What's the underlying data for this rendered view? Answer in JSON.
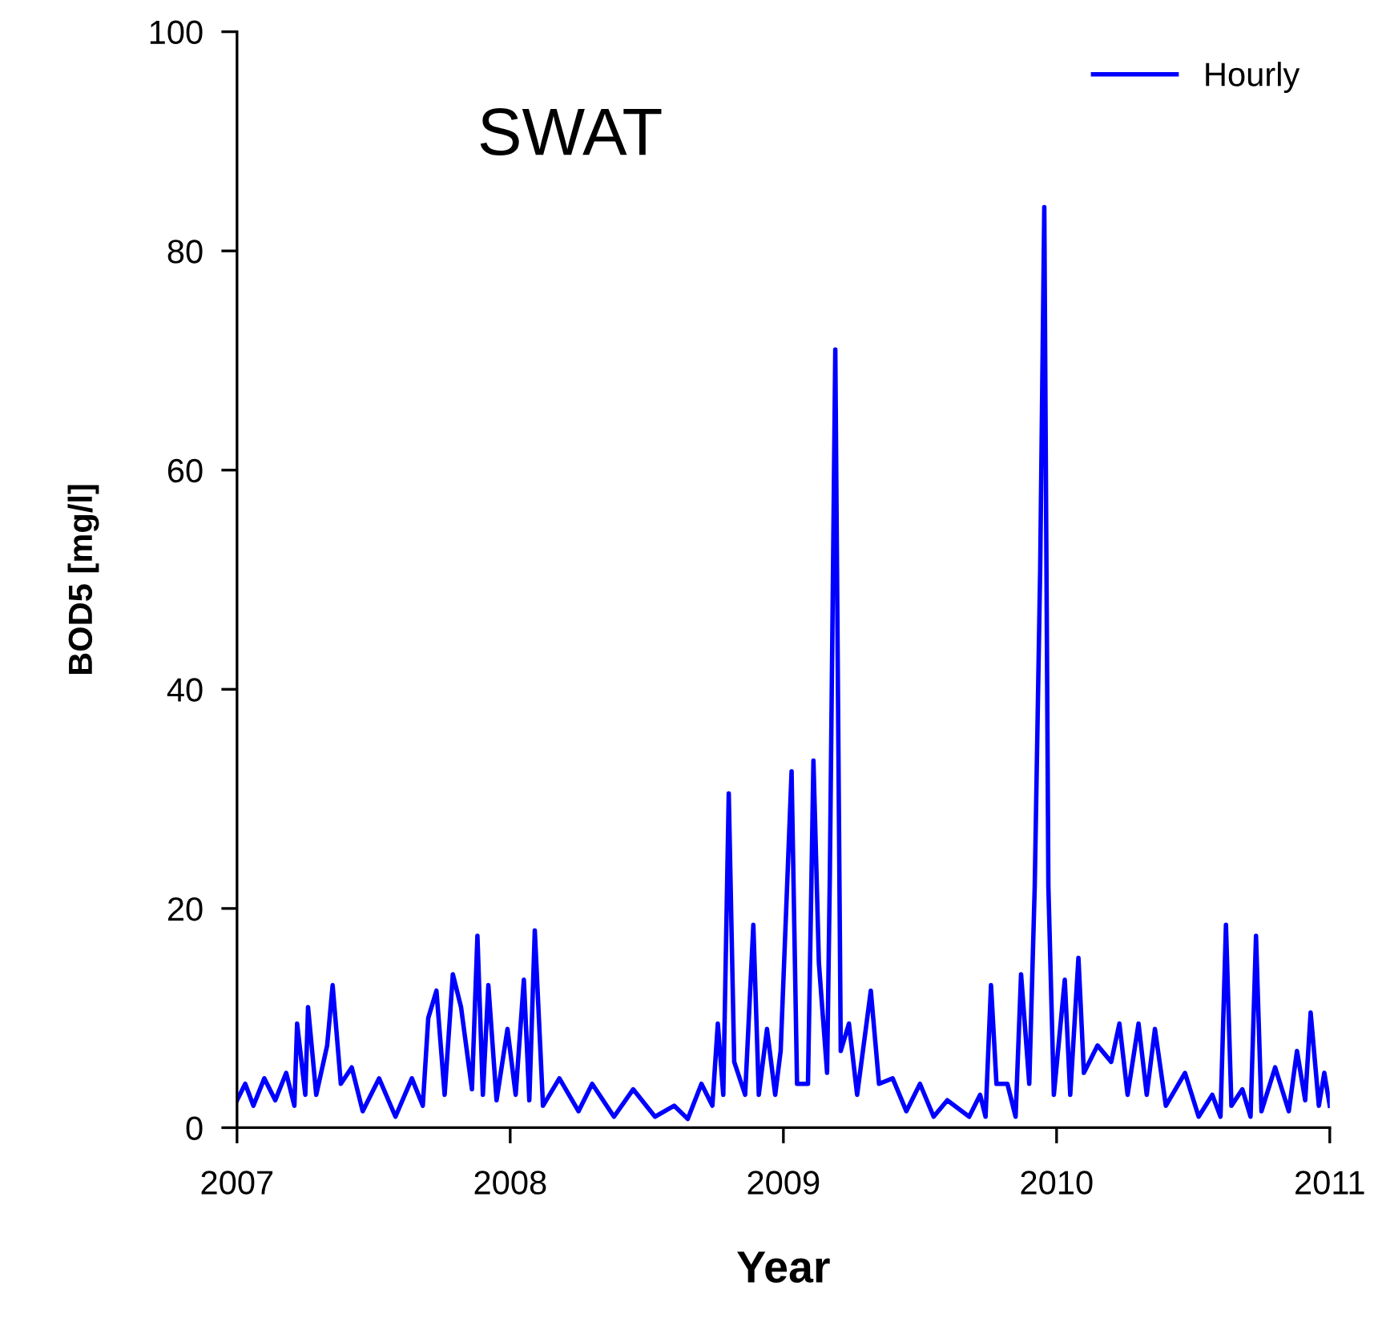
{
  "chart_data": {
    "type": "line",
    "xlabel": "Year",
    "ylabel": "BOD5 [mg/l]",
    "annotations": [
      "SWAT"
    ],
    "x": [
      2007.0,
      2007.03,
      2007.06,
      2007.1,
      2007.14,
      2007.18,
      2007.21,
      2007.22,
      2007.25,
      2007.26,
      2007.29,
      2007.33,
      2007.35,
      2007.38,
      2007.42,
      2007.46,
      2007.52,
      2007.58,
      2007.64,
      2007.68,
      2007.7,
      2007.73,
      2007.76,
      2007.79,
      2007.82,
      2007.86,
      2007.88,
      2007.9,
      2007.92,
      2007.95,
      2007.99,
      2008.02,
      2008.05,
      2008.07,
      2008.09,
      2008.12,
      2008.18,
      2008.25,
      2008.3,
      2008.38,
      2008.45,
      2008.53,
      2008.6,
      2008.65,
      2008.7,
      2008.74,
      2008.76,
      2008.78,
      2008.8,
      2008.82,
      2008.86,
      2008.89,
      2008.91,
      2008.94,
      2008.97,
      2008.99,
      2009.03,
      2009.05,
      2009.09,
      2009.11,
      2009.13,
      2009.16,
      2009.17,
      2009.19,
      2009.21,
      2009.24,
      2009.27,
      2009.32,
      2009.35,
      2009.4,
      2009.45,
      2009.5,
      2009.55,
      2009.6,
      2009.68,
      2009.72,
      2009.74,
      2009.76,
      2009.78,
      2009.82,
      2009.85,
      2009.87,
      2009.9,
      2009.92,
      2009.94,
      2009.955,
      2009.97,
      2009.99,
      2010.03,
      2010.05,
      2010.08,
      2010.1,
      2010.15,
      2010.2,
      2010.23,
      2010.26,
      2010.3,
      2010.33,
      2010.36,
      2010.4,
      2010.47,
      2010.52,
      2010.57,
      2010.6,
      2010.62,
      2010.64,
      2010.68,
      2010.71,
      2010.73,
      2010.75,
      2010.8,
      2010.85,
      2010.88,
      2010.91,
      2010.93,
      2010.96,
      2010.98,
      2011.0
    ],
    "series": [
      {
        "name": "Hourly",
        "color": "#0000ff",
        "values": [
          2.5,
          4,
          2,
          4.5,
          2.5,
          5,
          2,
          9.5,
          3,
          11,
          3,
          7.5,
          13,
          4,
          5.5,
          1.5,
          4.5,
          1,
          4.5,
          2,
          10,
          12.5,
          3,
          14,
          11,
          3.5,
          17.5,
          3,
          13,
          2.5,
          9,
          3,
          13.5,
          2.5,
          18,
          2,
          4.5,
          1.5,
          4,
          1,
          3.5,
          1,
          2,
          0.8,
          4,
          2,
          9.5,
          3,
          30.5,
          6,
          3,
          18.5,
          3,
          9,
          3,
          7,
          32.5,
          4,
          4,
          33.5,
          15,
          5,
          23,
          71,
          7,
          9.5,
          3,
          12.5,
          4,
          4.5,
          1.5,
          4,
          1,
          2.5,
          1,
          3,
          1,
          13,
          4,
          4,
          1,
          14,
          4,
          22,
          51,
          84,
          22,
          3,
          13.5,
          3,
          15.5,
          5,
          7.5,
          6,
          9.5,
          3,
          9.5,
          3,
          9,
          2,
          5,
          1,
          3,
          1,
          18.5,
          2,
          3.5,
          1,
          17.5,
          1.5,
          5.5,
          1.5,
          7,
          2.5,
          10.5,
          2,
          5,
          2
        ]
      }
    ],
    "xlim": [
      2007,
      2011
    ],
    "xticks": [
      2007,
      2008,
      2009,
      2010,
      2011
    ],
    "ylim": [
      0,
      100
    ],
    "yticks": [
      0,
      20,
      40,
      60,
      80,
      100
    ],
    "grid": false,
    "legend": "top right",
    "marker": "none",
    "line_style": "solid"
  }
}
